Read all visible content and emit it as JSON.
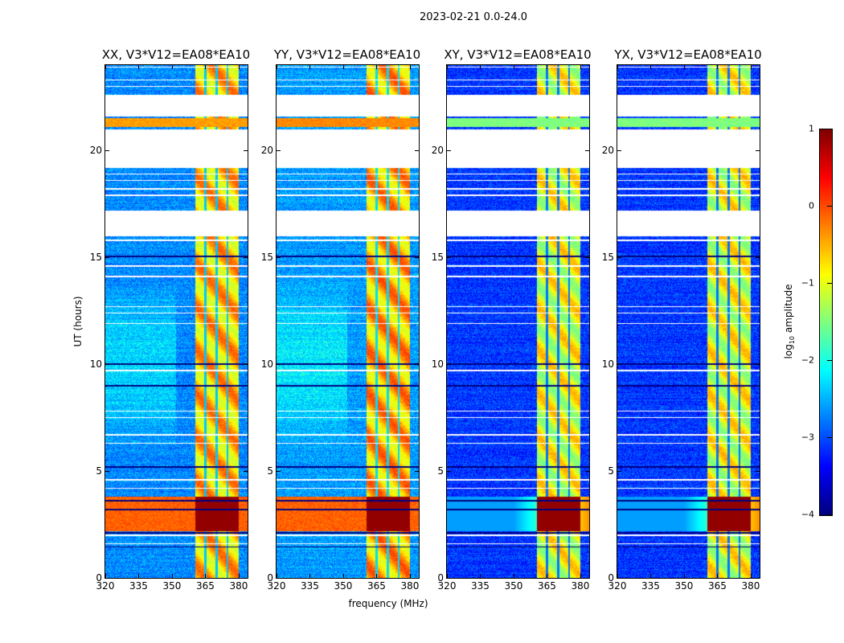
{
  "chart_data": {
    "type": "heatmap",
    "title": "2023-02-21 0.0-24.0",
    "xlabel": "frequency (MHz)",
    "ylabel": "UT (hours)",
    "xlim": [
      320,
      384
    ],
    "ylim": [
      0,
      24
    ],
    "xticks": [
      "320",
      "335",
      "350",
      "365",
      "380"
    ],
    "xtick_values": [
      320,
      335,
      350,
      365,
      380
    ],
    "yticks": [
      "0",
      "5",
      "10",
      "15",
      "20"
    ],
    "ytick_values": [
      0,
      5,
      10,
      15,
      20
    ],
    "colorbar": {
      "label_prefix": "log",
      "label_sub": "10",
      "label_suffix": " amplitude",
      "range": [
        -4,
        1
      ],
      "ticks": [
        "1",
        "0",
        "−1",
        "−2",
        "−3",
        "−4"
      ],
      "tick_values": [
        1,
        0,
        -1,
        -2,
        -3,
        -4
      ],
      "colormap": "jet"
    },
    "panels": [
      {
        "title": "XX, V3*V12=EA08*EA10",
        "background_level": -2.7,
        "band_level": -0.6,
        "rfi_line_level": -0.4
      },
      {
        "title": "YY, V3*V12=EA08*EA10",
        "background_level": -2.6,
        "band_level": -0.5,
        "rfi_line_level": -0.3
      },
      {
        "title": "XY, V3*V12=EA08*EA10",
        "background_level": -3.1,
        "band_level": -1.0,
        "rfi_line_level": -1.5
      },
      {
        "title": "YX, V3*V12=EA08*EA10",
        "background_level": -3.1,
        "band_level": -1.0,
        "rfi_line_level": -1.5
      }
    ],
    "bright_band_mhz": [
      360.5,
      380
    ],
    "band_notch_channels_mhz": [
      365,
      370,
      375
    ],
    "flagged_intervals_hours": [
      [
        21.6,
        22.6
      ],
      [
        19.2,
        21.0
      ],
      [
        16.0,
        17.2
      ]
    ],
    "flagged_lines_hours": [
      23.9,
      23.3,
      23.0,
      18.9,
      18.6,
      18.2,
      17.9,
      15.8,
      14.6,
      14.1,
      12.7,
      12.4,
      11.9,
      9.7,
      7.8,
      7.5,
      6.7,
      6.3,
      4.6,
      4.2,
      2.0,
      1.6
    ],
    "dark_lines_hours": [
      15.05,
      10.0,
      9.0,
      5.2,
      3.6,
      3.2,
      2.1,
      1.45
    ],
    "strong_rfi_hours": [
      2.2,
      3.8
    ],
    "rfi_line_hours": 21.3
  }
}
